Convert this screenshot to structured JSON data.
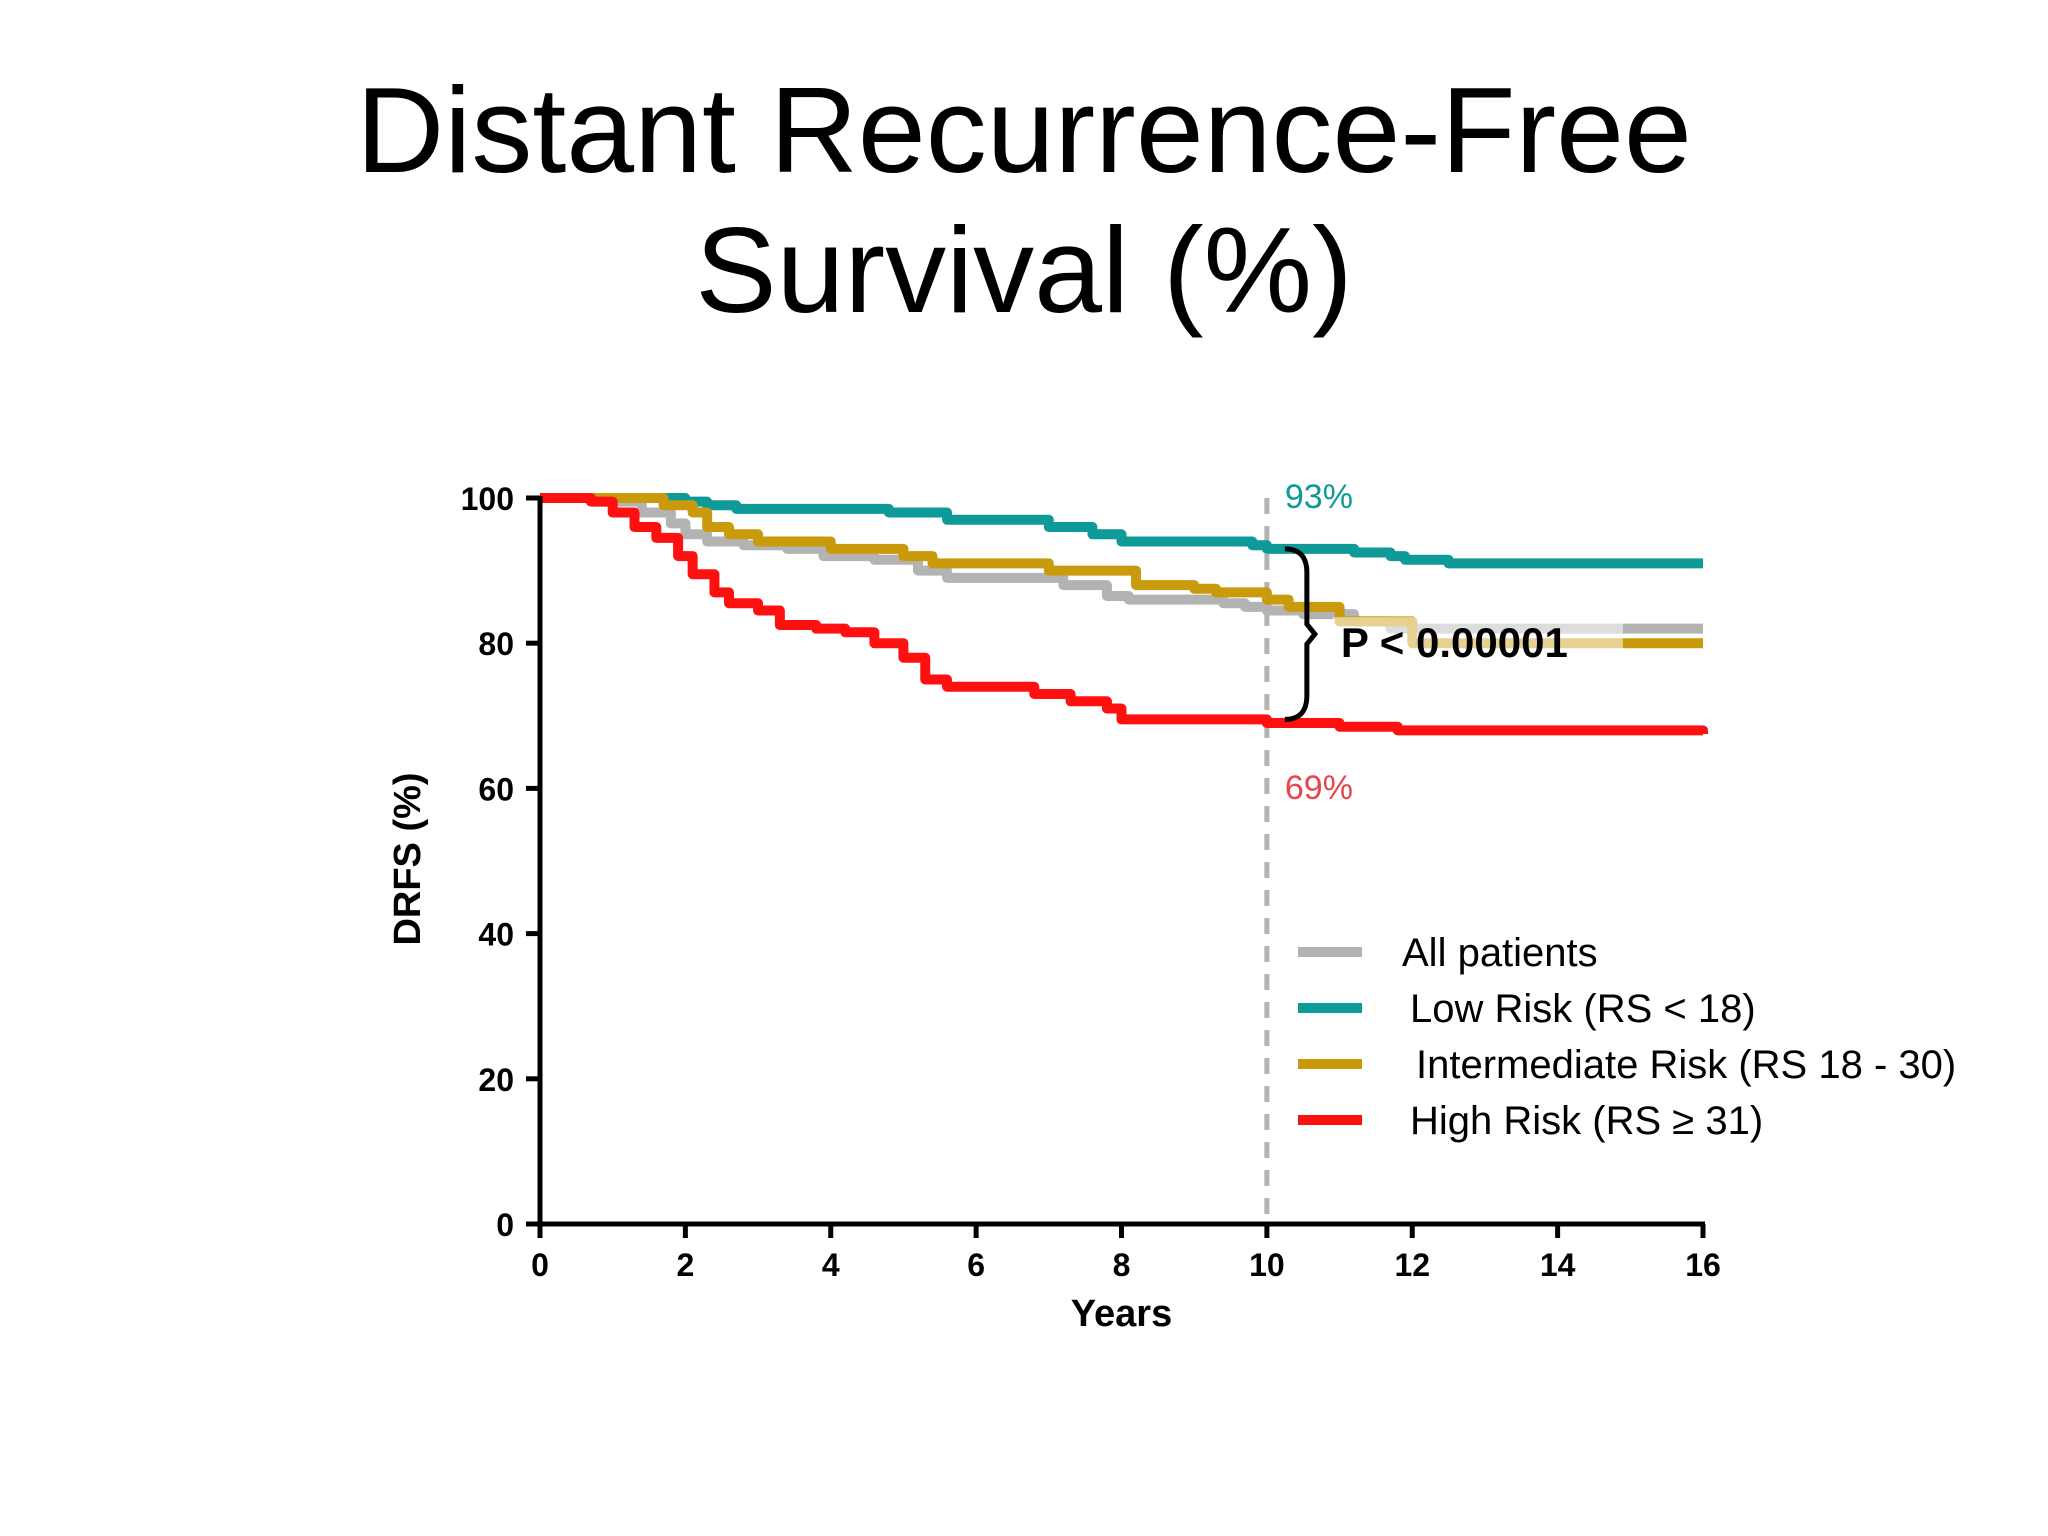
{
  "chart_data": {
    "type": "line",
    "title_line1": "Distant Recurrence-Free",
    "title_line2": "Survival (%)",
    "xlabel": "Years",
    "ylabel": "DRFS (%)",
    "xlim": [
      0,
      16
    ],
    "ylim": [
      0,
      100
    ],
    "xticks": [
      0,
      2,
      4,
      6,
      8,
      10,
      12,
      14,
      16
    ],
    "yticks": [
      0,
      20,
      40,
      60,
      80,
      100
    ],
    "grid": false,
    "legend_position": "bottom-right",
    "reference_line_x": 10,
    "annotations": {
      "low_at_10": "93%",
      "high_at_10": "69%",
      "p_value": "P < 0.00001"
    },
    "series": [
      {
        "name": "All patients",
        "color": "#b3b3b3",
        "x": [
          0,
          0.8,
          1.4,
          1.8,
          2.0,
          2.3,
          2.8,
          3.4,
          3.9,
          4.6,
          5.2,
          5.6,
          6.5,
          7.2,
          7.8,
          8.1,
          8.9,
          9.4,
          9.7,
          10.0,
          10.5,
          11.2,
          11.7,
          12.2,
          14.5,
          16.0
        ],
        "y": [
          100,
          99.5,
          98,
          96.5,
          95,
          94,
          93.5,
          93,
          92,
          91.5,
          90,
          89,
          89,
          88,
          86.5,
          86,
          86,
          85.5,
          85,
          84.5,
          84,
          83,
          82,
          82,
          82,
          82
        ]
      },
      {
        "name": "Low Risk (RS < 18)",
        "color": "#0e9a98",
        "x": [
          0,
          1.6,
          2.0,
          2.3,
          2.7,
          4.5,
          4.8,
          5.3,
          5.6,
          6.5,
          7.0,
          7.6,
          8.0,
          9.0,
          9.8,
          10.0,
          10.5,
          11.2,
          11.7,
          11.9,
          12.5,
          16.0
        ],
        "y": [
          100,
          100,
          99.5,
          99,
          98.5,
          98.5,
          98,
          98,
          97,
          97,
          96,
          95,
          94,
          94,
          93.5,
          93,
          93,
          92.5,
          92,
          91.5,
          91,
          91
        ]
      },
      {
        "name": "Intermediate Risk (RS 18 - 30)",
        "color": "#c99a0b",
        "x": [
          0,
          1.3,
          1.7,
          2.1,
          2.3,
          2.6,
          3.0,
          3.6,
          4.0,
          5.0,
          5.4,
          6.8,
          7.0,
          8.0,
          8.2,
          9.0,
          9.3,
          10.0,
          10.3,
          11.0,
          12.0,
          16.0
        ],
        "y": [
          100,
          100,
          99,
          98,
          96,
          95,
          94,
          94,
          93,
          92,
          91,
          91,
          90,
          90,
          88,
          87.5,
          87,
          86,
          85,
          83,
          80,
          80
        ]
      },
      {
        "name": "High Risk (RS ≥ 31)",
        "color": "#ff1010",
        "x": [
          0,
          0.7,
          1.0,
          1.3,
          1.6,
          1.9,
          2.1,
          2.4,
          2.6,
          3.0,
          3.3,
          3.8,
          4.2,
          4.6,
          5.0,
          5.3,
          5.6,
          6.4,
          6.8,
          7.3,
          7.8,
          8.0,
          9.0,
          10.0,
          11.0,
          11.8,
          16.0
        ],
        "y": [
          100,
          99.5,
          98,
          96,
          94.5,
          92,
          89.5,
          87,
          85.5,
          84.5,
          82.5,
          82,
          81.5,
          80,
          78,
          75,
          74,
          74,
          73,
          72,
          71,
          69.5,
          69.5,
          69,
          68.5,
          68,
          67.5
        ]
      }
    ]
  }
}
